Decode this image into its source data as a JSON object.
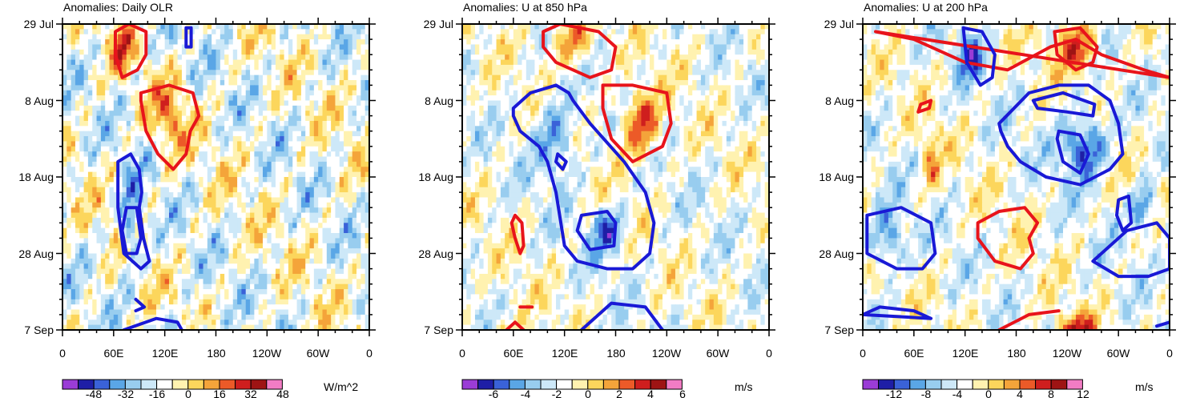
{
  "colors": {
    "levels": [
      "#9a3cd6",
      "#1e1ea6",
      "#3a62d8",
      "#5aa6e6",
      "#98cdef",
      "#cde8f8",
      "#ffffff",
      "#fff2b0",
      "#fcd65c",
      "#f4a43a",
      "#ec5a28",
      "#cf1e1e",
      "#9e1414",
      "#f27cc4"
    ],
    "contour_positive": "#e8141b",
    "contour_negative": "#1919d6"
  },
  "chart_data": [
    {
      "type": "heatmap",
      "title": "Anomalies: Daily OLR",
      "units": "W/m^2",
      "xlabel": "",
      "ylabel": "",
      "xlim": [
        0,
        360
      ],
      "x_tick_labels": [
        "0",
        "60E",
        "120E",
        "180",
        "120W",
        "60W",
        "0"
      ],
      "ylim": [
        "29 Jul",
        "7 Sep"
      ],
      "y_tick_labels": [
        "29 Jul",
        "8 Aug",
        "18 Aug",
        "28 Aug",
        "7 Sep"
      ],
      "colorbar_labels": [
        "-48",
        "-32",
        "-16",
        "0",
        "16",
        "32",
        "48"
      ],
      "contours": [
        {
          "sign": "positive",
          "lon": [
            62,
            78,
            98,
            98,
            88,
            70,
            62
          ],
          "day": [
            1,
            0,
            1,
            4,
            6,
            7,
            4
          ]
        },
        {
          "sign": "positive",
          "lon": [
            92,
            125,
            153,
            160,
            150,
            145,
            130,
            112,
            98,
            92
          ],
          "day": [
            9,
            8,
            9,
            12,
            14,
            17,
            19,
            17,
            14,
            10
          ]
        },
        {
          "sign": "negative",
          "lon": [
            145,
            151,
            151,
            145
          ],
          "day": [
            0.5,
            0.5,
            3,
            3
          ]
        },
        {
          "sign": "negative",
          "lon": [
            65,
            80,
            90,
            93,
            90,
            95,
            102,
            92,
            72,
            65
          ],
          "day": [
            18,
            17,
            19,
            22,
            24,
            28,
            31,
            32,
            30,
            24
          ]
        },
        {
          "sign": "negative",
          "lon": [
            75,
            87,
            92,
            87,
            75,
            70
          ],
          "day": [
            24,
            24,
            28,
            30,
            30,
            27
          ]
        },
        {
          "sign": "negative",
          "lon": [
            86,
            96,
            86
          ],
          "day": [
            36,
            37,
            37.5
          ]
        },
        {
          "sign": "negative",
          "lon": [
            72,
            110,
            135,
            140
          ],
          "day": [
            40,
            38.5,
            39,
            40
          ]
        }
      ]
    },
    {
      "type": "heatmap",
      "title": "Anomalies: U at 850 hPa",
      "units": "m/s",
      "xlabel": "",
      "ylabel": "",
      "xlim": [
        0,
        360
      ],
      "x_tick_labels": [
        "0",
        "60E",
        "120E",
        "180",
        "120W",
        "60W",
        "0"
      ],
      "ylim": [
        "29 Jul",
        "7 Sep"
      ],
      "y_tick_labels": [
        "29 Jul",
        "8 Aug",
        "18 Aug",
        "28 Aug",
        "7 Sep"
      ],
      "colorbar_labels": [
        "-6",
        "-4",
        "-2",
        "0",
        "2",
        "4",
        "6"
      ],
      "contours": [
        {
          "sign": "positive",
          "lon": [
            95,
            115,
            160,
            180,
            175,
            150,
            110,
            95
          ],
          "day": [
            1,
            0,
            1,
            3,
            6,
            7,
            5,
            3
          ]
        },
        {
          "sign": "positive",
          "lon": [
            165,
            200,
            240,
            245,
            235,
            200,
            175,
            165
          ],
          "day": [
            8,
            8,
            9,
            13,
            16,
            18,
            15,
            11
          ]
        },
        {
          "sign": "negative",
          "lon": [
            60,
            80,
            110,
            125,
            130,
            150,
            190,
            215,
            225,
            220,
            200,
            170,
            135,
            120,
            110,
            100,
            90,
            68,
            60
          ],
          "day": [
            11,
            9,
            8,
            9,
            10,
            13,
            18,
            22,
            26,
            30,
            32,
            32,
            31,
            29,
            22,
            18,
            16,
            14,
            12
          ]
        },
        {
          "sign": "negative",
          "lon": [
            140,
            170,
            180,
            178,
            150,
            135,
            140
          ],
          "day": [
            25,
            24.5,
            26,
            29,
            29.5,
            27,
            25
          ]
        },
        {
          "sign": "negative",
          "lon": [
            112,
            122,
            118,
            110
          ],
          "day": [
            17,
            18,
            19,
            18
          ]
        },
        {
          "sign": "positive",
          "lon": [
            62,
            70,
            72,
            68,
            62,
            58
          ],
          "day": [
            25,
            26,
            29,
            30,
            28,
            26
          ]
        },
        {
          "sign": "positive",
          "lon": [
            68,
            82
          ],
          "day": [
            37,
            37
          ]
        },
        {
          "sign": "positive",
          "lon": [
            52,
            62,
            72
          ],
          "day": [
            40,
            39,
            40
          ]
        },
        {
          "sign": "negative",
          "lon": [
            140,
            175,
            215,
            235
          ],
          "day": [
            40,
            36.5,
            37,
            40
          ]
        }
      ]
    },
    {
      "type": "heatmap",
      "title": "Anomalies: U at 200 hPa",
      "units": "m/s",
      "xlabel": "",
      "ylabel": "",
      "xlim": [
        0,
        360
      ],
      "x_tick_labels": [
        "0",
        "60E",
        "120E",
        "180",
        "120W",
        "60W",
        "0"
      ],
      "ylim": [
        "29 Jul",
        "7 Sep"
      ],
      "y_tick_labels": [
        "29 Jul",
        "8 Aug",
        "18 Aug",
        "28 Aug",
        "7 Sep"
      ],
      "colorbar_labels": [
        "-12",
        "-8",
        "-4",
        "0",
        "4",
        "8",
        "12"
      ],
      "contours": [
        {
          "sign": "positive",
          "lon": [
            15,
            60,
            120,
            170,
            220,
            250,
            280,
            330,
            360
          ],
          "day": [
            1,
            2,
            5,
            6,
            3,
            2,
            4,
            6,
            7
          ]
        },
        {
          "sign": "positive",
          "lon": [
            225,
            255,
            275,
            270,
            250,
            228
          ],
          "day": [
            1,
            0.5,
            3,
            5,
            6,
            4
          ]
        },
        {
          "sign": "negative",
          "lon": [
            118,
            140,
            155,
            152,
            138,
            122
          ],
          "day": [
            0.5,
            1,
            4,
            7,
            8,
            5
          ]
        },
        {
          "sign": "negative",
          "lon": [
            160,
            195,
            230,
            265,
            290,
            300,
            305,
            290,
            255,
            215,
            185,
            170,
            162,
            160
          ],
          "day": [
            13,
            9,
            8,
            8,
            10,
            13,
            17,
            19,
            21,
            20,
            18,
            16,
            14,
            13
          ]
        },
        {
          "sign": "negative",
          "lon": [
            200,
            235,
            272,
            270,
            240,
            205
          ],
          "day": [
            10,
            9,
            10.5,
            12,
            11.5,
            11
          ]
        },
        {
          "sign": "negative",
          "lon": [
            230,
            255,
            265,
            255,
            235,
            228
          ],
          "day": [
            14,
            14.5,
            17,
            19.5,
            18,
            15
          ]
        },
        {
          "sign": "positive",
          "lon": [
            68,
            80,
            78,
            65
          ],
          "day": [
            10.5,
            10,
            11,
            11.5
          ]
        },
        {
          "sign": "negative",
          "lon": [
            5,
            45,
            80,
            85,
            70,
            40,
            5
          ],
          "day": [
            25,
            24,
            26,
            30,
            32,
            32,
            30
          ]
        },
        {
          "sign": "positive",
          "lon": [
            135,
            160,
            190,
            205,
            195,
            200,
            185,
            155,
            135
          ],
          "day": [
            26,
            24.5,
            24,
            26,
            28,
            30,
            32,
            31,
            28
          ]
        },
        {
          "sign": "negative",
          "lon": [
            300,
            312,
            315,
            305,
            298
          ],
          "day": [
            23,
            22.5,
            26,
            27,
            25
          ]
        },
        {
          "sign": "negative",
          "lon": [
            270,
            310,
            345,
            360,
            360,
            335,
            300,
            270
          ],
          "day": [
            31,
            27,
            26,
            28,
            32,
            33,
            33,
            31
          ]
        },
        {
          "sign": "negative",
          "lon": [
            0,
            20,
            60,
            80
          ],
          "day": [
            38,
            37,
            37.5,
            38.5
          ]
        },
        {
          "sign": "positive",
          "lon": [
            160,
            195,
            230
          ],
          "day": [
            40,
            38,
            37.5
          ]
        },
        {
          "sign": "negative",
          "lon": [
            345,
            360
          ],
          "day": [
            39.5,
            39
          ]
        }
      ]
    }
  ]
}
